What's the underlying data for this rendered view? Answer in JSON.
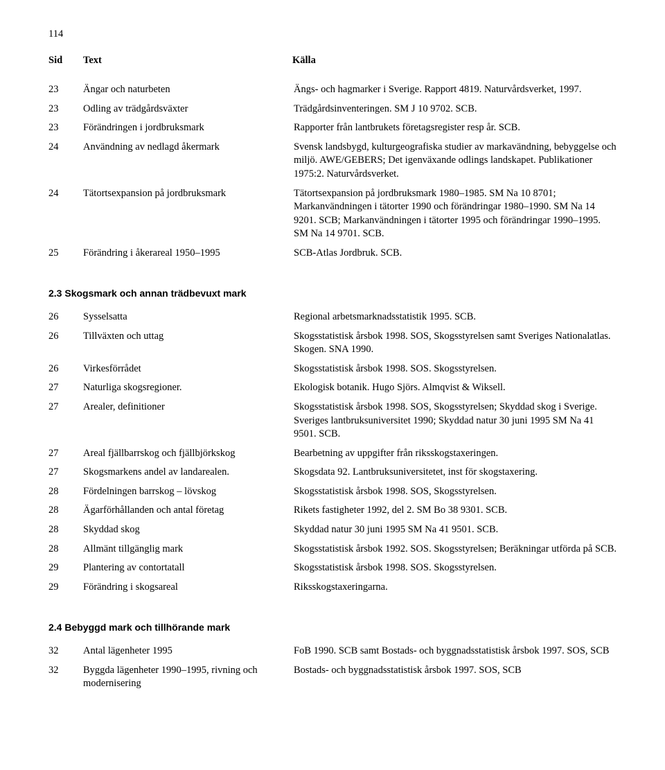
{
  "page_number": "114",
  "header": {
    "sid": "Sid",
    "text": "Text",
    "kalla": "Källa"
  },
  "section1": {
    "rows": [
      {
        "sid": "23",
        "text": "Ängar och naturbeten",
        "kalla": "Ängs- och hagmarker i Sverige. Rapport 4819. Naturvårdsverket, 1997."
      },
      {
        "sid": "23",
        "text": "Odling av trädgårdsväxter",
        "kalla": "Trädgårdsinventeringen. SM J 10 9702. SCB."
      },
      {
        "sid": "23",
        "text": "Förändringen i jordbruksmark",
        "kalla": "Rapporter från lantbrukets företagsregister resp år. SCB."
      },
      {
        "sid": "24",
        "text": "Användning av nedlagd åkermark",
        "kalla": "Svensk landsbygd, kulturgeografiska studier av markavändning, bebyggelse och miljö. AWE/GEBERS; Det igenväxande odlings landskapet. Publikationer 1975:2. Naturvårdsverket."
      },
      {
        "sid": "24",
        "text": "Tätortsexpansion på jordbruksmark",
        "kalla": "Tätortsexpansion på jordbruksmark 1980–1985. SM Na 10 8701; Markanvändningen i tätorter 1990 och förändringar 1980–1990. SM Na 14 9201. SCB; Markanvändningen i tätorter 1995 och förändringar 1990–1995. SM Na 14 9701. SCB."
      },
      {
        "sid": "25",
        "text": "Förändring i åkerareal 1950–1995",
        "kalla": "SCB-Atlas Jordbruk. SCB."
      }
    ]
  },
  "section2": {
    "heading": "2.3  Skogsmark och annan trädbevuxt mark",
    "rows": [
      {
        "sid": "26",
        "text": "Sysselsatta",
        "kalla": "Regional arbetsmarknadsstatistik 1995. SCB."
      },
      {
        "sid": "26",
        "text": "Tillväxten och uttag",
        "kalla": "Skogsstatistisk årsbok 1998. SOS, Skogsstyrelsen samt Sveriges Nationalatlas. Skogen. SNA 1990."
      },
      {
        "sid": "26",
        "text": "Virkesförrådet",
        "kalla": "Skogsstatistisk årsbok 1998. SOS. Skogsstyrelsen."
      },
      {
        "sid": "27",
        "text": "Naturliga skogsregioner.",
        "kalla": "Ekologisk botanik. Hugo Sjörs. Almqvist & Wiksell."
      },
      {
        "sid": "27",
        "text": "Arealer, definitioner",
        "kalla": "Skogsstatistisk årsbok 1998. SOS, Skogsstyrelsen; Skyddad skog i Sverige. Sveriges lantbruksuniversitet 1990; Skyddad natur 30 juni 1995 SM Na 41 9501. SCB."
      },
      {
        "sid": "27",
        "text": "Areal fjällbarrskog och fjällbjörkskog",
        "kalla": "Bearbetning av uppgifter från riksskogstaxeringen."
      },
      {
        "sid": "27",
        "text": "Skogsmarkens andel av landarealen.",
        "kalla": "Skogsdata 92. Lantbruksuniversitetet, inst för skogstaxering."
      },
      {
        "sid": "28",
        "text": "Fördelningen barrskog – lövskog",
        "kalla": "Skogsstatistisk årsbok 1998. SOS, Skogsstyrelsen."
      },
      {
        "sid": "28",
        "text": "Ägarförhållanden och antal företag",
        "kalla": "Rikets fastigheter 1992, del 2. SM Bo 38 9301. SCB."
      },
      {
        "sid": "28",
        "text": "Skyddad skog",
        "kalla": "Skyddad natur 30 juni 1995 SM Na 41 9501. SCB."
      },
      {
        "sid": "28",
        "text": "Allmänt tillgänglig mark",
        "kalla": "Skogsstatistisk årsbok 1992. SOS. Skogsstyrelsen; Beräkningar utförda på SCB."
      },
      {
        "sid": "29",
        "text": "Plantering av contortatall",
        "kalla": "Skogsstatistisk årsbok 1998. SOS. Skogsstyrelsen."
      },
      {
        "sid": "29",
        "text": "Förändring i skogsareal",
        "kalla": "Riksskogstaxeringarna."
      }
    ]
  },
  "section3": {
    "heading": "2.4  Bebyggd mark och tillhörande mark",
    "rows": [
      {
        "sid": "32",
        "text": "Antal lägenheter 1995",
        "kalla": "FoB 1990. SCB samt Bostads- och byggnadsstatistisk årsbok 1997. SOS, SCB"
      },
      {
        "sid": "32",
        "text": "Byggda lägenheter 1990–1995, rivning och modernisering",
        "kalla": "Bostads- och byggnadsstatistisk årsbok 1997. SOS, SCB"
      }
    ]
  }
}
